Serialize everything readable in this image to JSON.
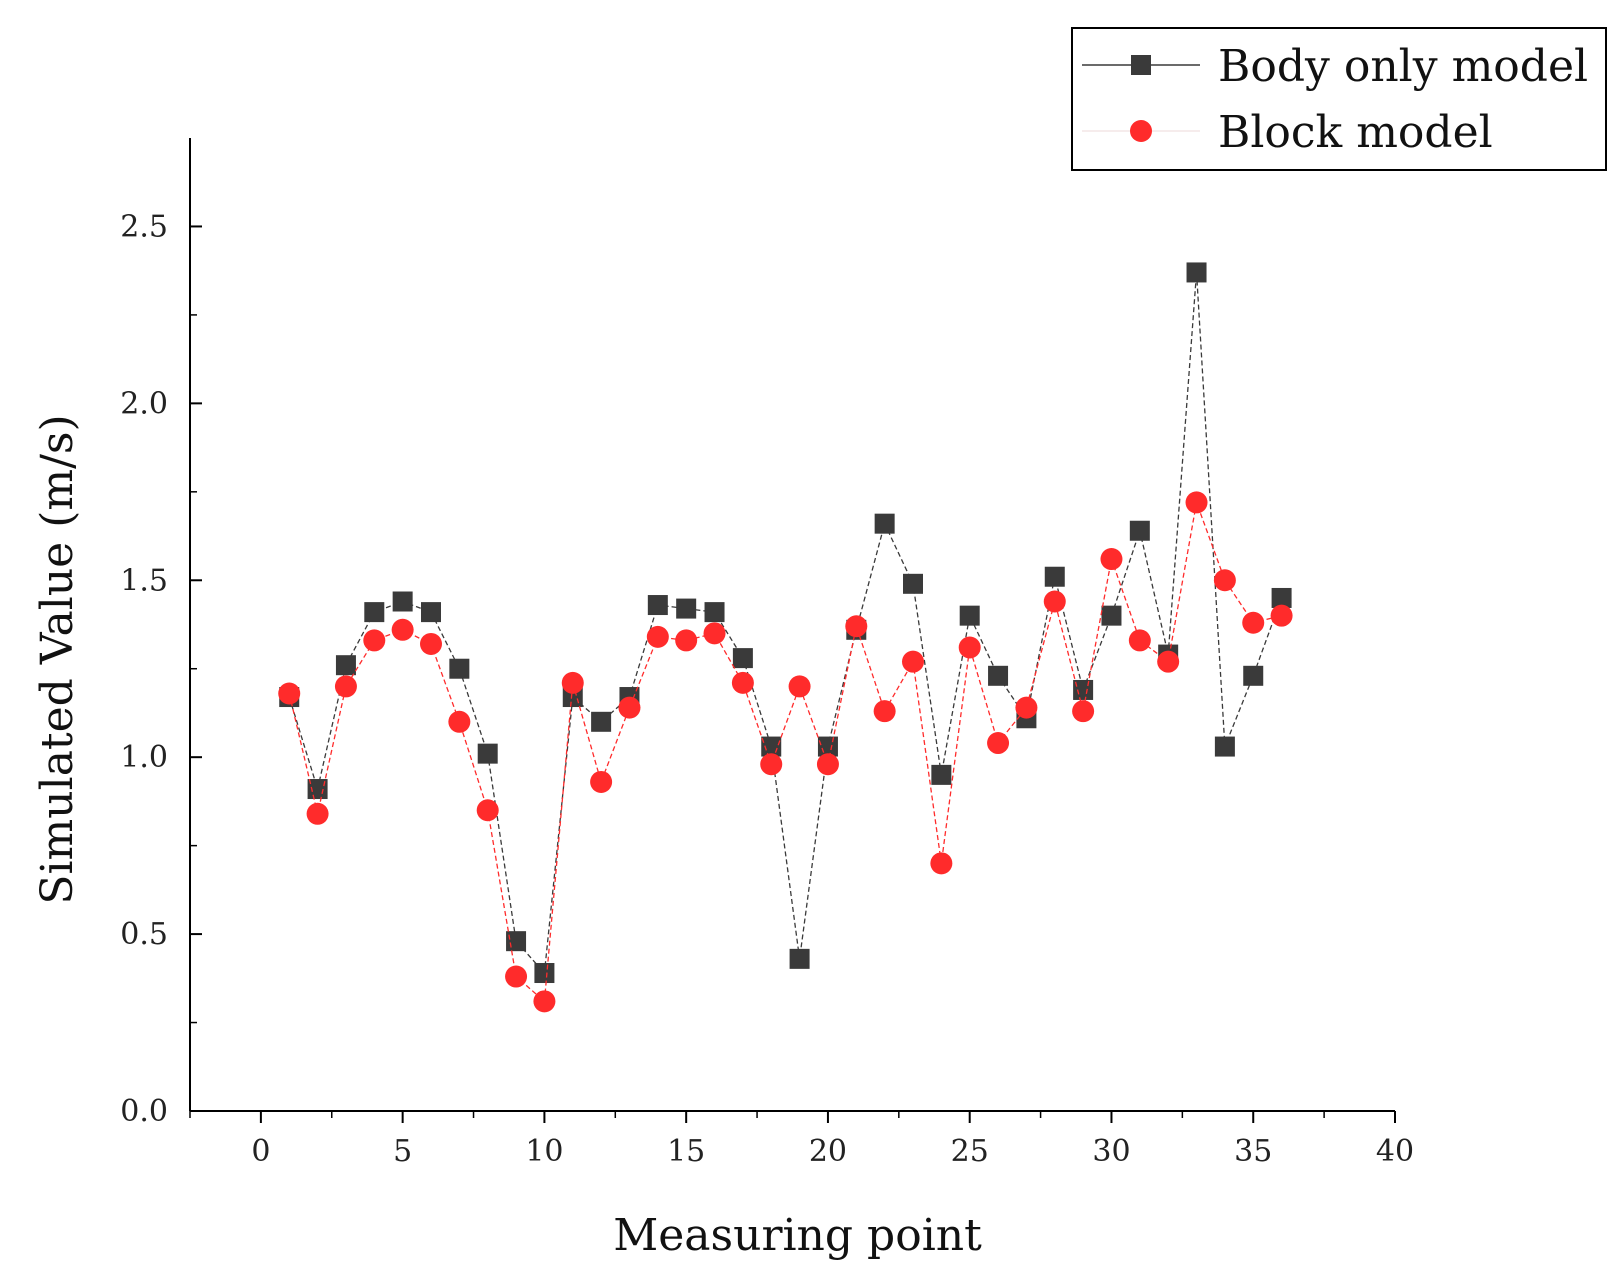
{
  "chart_data": {
    "type": "line",
    "title": "",
    "xlabel": "Measuring point",
    "ylabel": "Simulated Value (m/s)",
    "xlim": [
      -2.5,
      40
    ],
    "ylim": [
      0,
      2.75
    ],
    "xticks": [
      0,
      5,
      10,
      15,
      20,
      25,
      30,
      35,
      40
    ],
    "yticks": [
      0.0,
      0.5,
      1.0,
      1.5,
      2.0,
      2.5
    ],
    "xtick_labels": [
      "0",
      "5",
      "10",
      "15",
      "20",
      "25",
      "30",
      "35",
      "40"
    ],
    "ytick_labels": [
      "0.0",
      "0.5",
      "1.0",
      "1.5",
      "2.0",
      "2.5"
    ],
    "legend_position": "top-right",
    "grid": false,
    "x": [
      1,
      2,
      3,
      4,
      5,
      6,
      7,
      8,
      9,
      10,
      11,
      12,
      13,
      14,
      15,
      16,
      17,
      18,
      19,
      20,
      21,
      22,
      23,
      24,
      25,
      26,
      27,
      28,
      29,
      30,
      31,
      32,
      33,
      34,
      35,
      36
    ],
    "series": [
      {
        "name": "Body only model",
        "marker": "square",
        "color": "#3a3a3a",
        "values": [
          1.17,
          0.91,
          1.26,
          1.41,
          1.44,
          1.41,
          1.25,
          1.01,
          0.48,
          0.39,
          1.17,
          1.1,
          1.17,
          1.43,
          1.42,
          1.41,
          1.28,
          1.03,
          0.43,
          1.03,
          1.36,
          1.66,
          1.49,
          0.95,
          1.4,
          1.23,
          1.11,
          1.51,
          1.19,
          1.4,
          1.64,
          1.29,
          2.37,
          1.03,
          1.23,
          1.45
        ]
      },
      {
        "name": "Block model",
        "marker": "circle",
        "color": "#ff2b2b",
        "values": [
          1.18,
          0.84,
          1.2,
          1.33,
          1.36,
          1.32,
          1.1,
          0.85,
          0.38,
          0.31,
          1.21,
          0.93,
          1.14,
          1.34,
          1.33,
          1.35,
          1.21,
          0.98,
          1.2,
          0.98,
          1.37,
          1.13,
          1.27,
          0.7,
          1.31,
          1.04,
          1.14,
          1.44,
          1.13,
          1.56,
          1.33,
          1.27,
          1.72,
          1.5,
          1.38,
          1.4
        ]
      }
    ]
  }
}
